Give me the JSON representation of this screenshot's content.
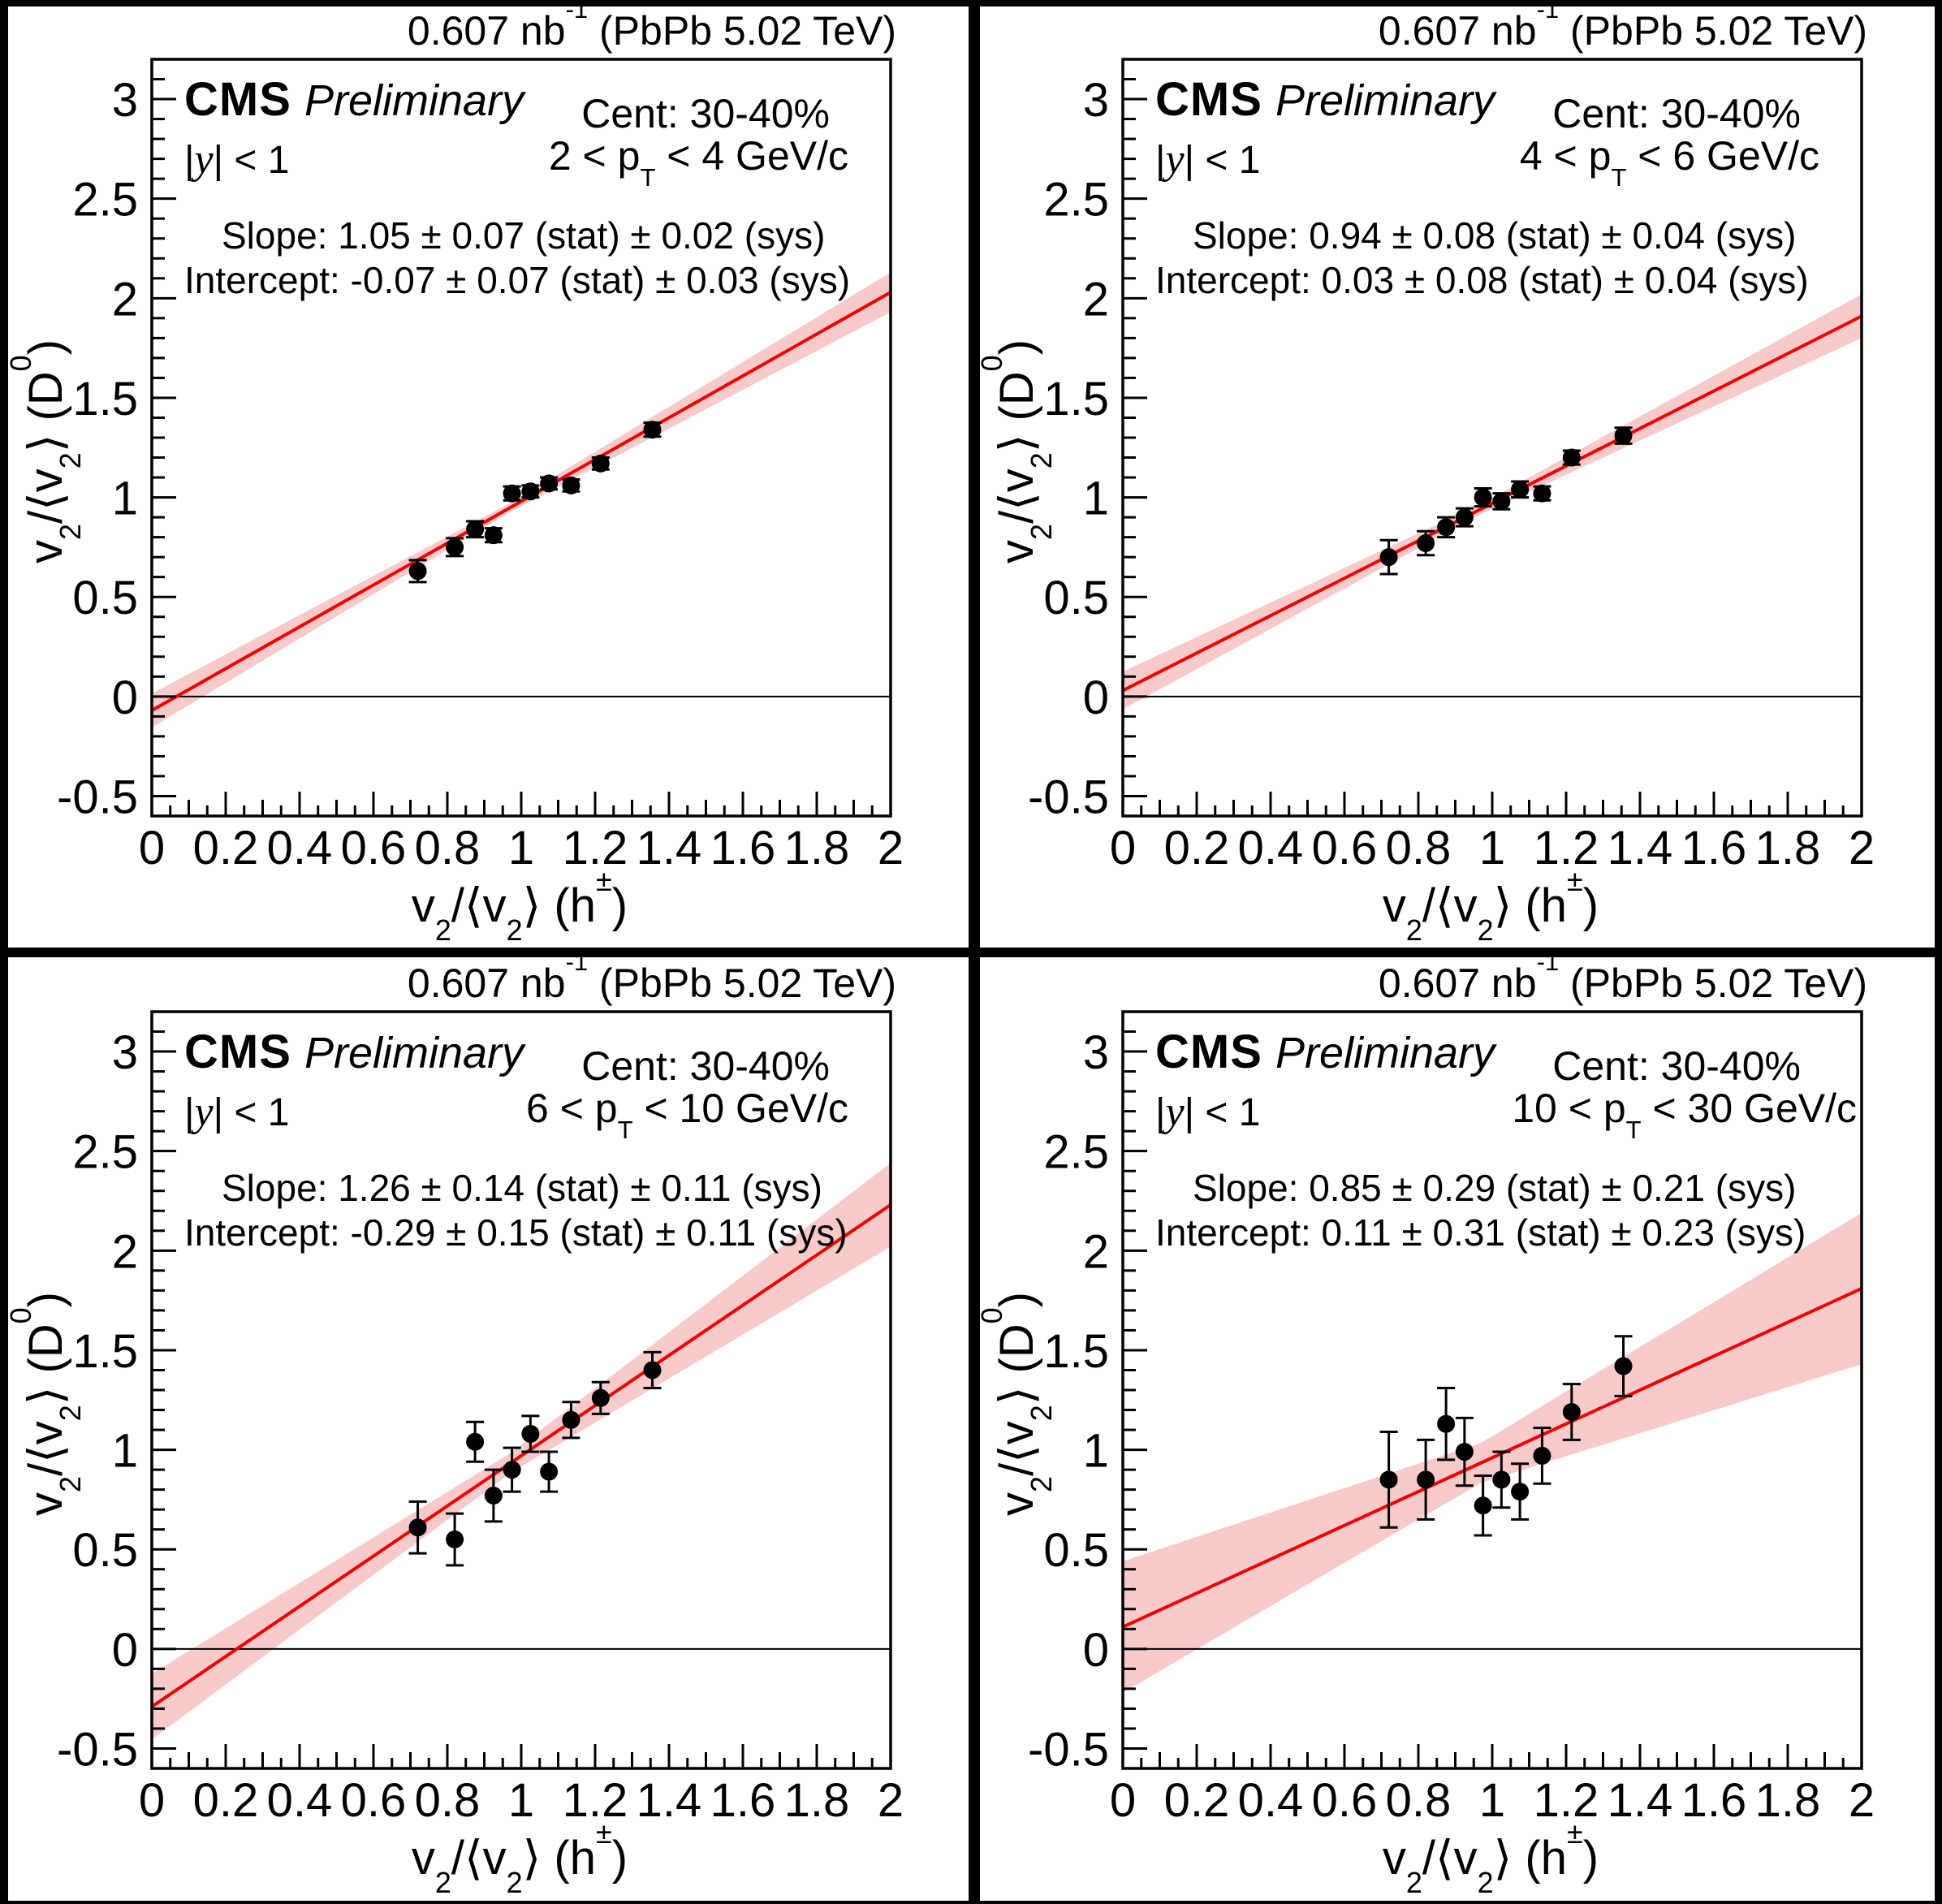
{
  "axes": {
    "xlabel_html": "v<sub>2</sub>/⟨v<sub>2</sub>⟩ (h<sup>±</sup>)",
    "ylabel_html": "v<sub>2</sub>/⟨v<sub>2</sub>⟩ (D<sup>0</sup>)",
    "xlabel": "v₂/⟨v₂⟩ (h±)",
    "ylabel": "v₂/⟨v₂⟩ (D⁰)",
    "xlim": [
      0,
      2
    ],
    "ylim": [
      -0.6,
      3.2
    ],
    "x_tick_labels": [
      "0",
      "0.2",
      "0.4",
      "0.6",
      "0.8",
      "1",
      "1.2",
      "1.4",
      "1.6",
      "1.8",
      "2"
    ],
    "y_tick_labels": [
      "-0.5",
      "0",
      "0.5",
      "1",
      "1.5",
      "2",
      "2.5",
      "3"
    ],
    "grid": false
  },
  "colors": {
    "fit_line": "#ee0000",
    "fit_band": "#f9caca",
    "marker": "#000000",
    "frame": "#000000"
  },
  "chart_data": [
    {
      "type": "scatter",
      "lumi_html": "0.607 nb<sup>-1</sup> (PbPb 5.02 TeV)",
      "experiment": "CMS",
      "label": "Preliminary",
      "centrality": "Cent: 30-40%",
      "rapidity_html": "|<i>y</i>| &lt; 1",
      "pt_range_html": "2 &lt; p<sub>T</sub> &lt; 4 GeV/c",
      "slope_text": "Slope: 1.05 ± 0.07 (stat) ± 0.02 (sys)",
      "intercept_text": "Intercept: -0.07 ± 0.07 (stat) ± 0.03 (sys)",
      "fit": {
        "slope": 1.05,
        "intercept": -0.07
      },
      "band": {
        "w0": 0.085,
        "wc": 0.022,
        "w2": 0.1,
        "pivot": 0.97
      },
      "x": [
        0.72,
        0.82,
        0.875,
        0.925,
        0.975,
        1.025,
        1.075,
        1.135,
        1.215,
        1.355
      ],
      "y": [
        0.63,
        0.75,
        0.84,
        0.81,
        1.02,
        1.03,
        1.07,
        1.06,
        1.17,
        1.34
      ],
      "yerr": [
        0.055,
        0.045,
        0.04,
        0.035,
        0.035,
        0.03,
        0.03,
        0.03,
        0.03,
        0.035
      ]
    },
    {
      "type": "scatter",
      "lumi_html": "0.607 nb<sup>-1</sup> (PbPb 5.02 TeV)",
      "experiment": "CMS",
      "label": "Preliminary",
      "centrality": "Cent: 30-40%",
      "rapidity_html": "|<i>y</i>| &lt; 1",
      "pt_range_html": "4 &lt; p<sub>T</sub> &lt; 6 GeV/c",
      "slope_text": "Slope: 0.94 ± 0.08 (stat) ± 0.04 (sys)",
      "intercept_text": "Intercept: 0.03 ± 0.08 (stat) ± 0.04 (sys)",
      "fit": {
        "slope": 0.94,
        "intercept": 0.03
      },
      "band": {
        "w0": 0.095,
        "wc": 0.025,
        "w2": 0.11,
        "pivot": 0.97
      },
      "x": [
        0.72,
        0.82,
        0.875,
        0.925,
        0.975,
        1.025,
        1.075,
        1.135,
        1.215,
        1.355
      ],
      "y": [
        0.7,
        0.77,
        0.85,
        0.9,
        1.0,
        0.98,
        1.04,
        1.02,
        1.2,
        1.31
      ],
      "yerr": [
        0.085,
        0.06,
        0.05,
        0.045,
        0.045,
        0.04,
        0.04,
        0.035,
        0.035,
        0.04
      ]
    },
    {
      "type": "scatter",
      "lumi_html": "0.607 nb<sup>-1</sup> (PbPb 5.02 TeV)",
      "experiment": "CMS",
      "label": "Preliminary",
      "centrality": "Cent: 30-40%",
      "rapidity_html": "|<i>y</i>| &lt; 1",
      "pt_range_html": "6 &lt; p<sub>T</sub> &lt; 10 GeV/c",
      "slope_text": "Slope: 1.26 ± 0.14 (stat) ± 0.11 (sys)",
      "intercept_text": "Intercept: -0.29 ± 0.15 (stat) ± 0.11 (sys)",
      "fit": {
        "slope": 1.26,
        "intercept": -0.29
      },
      "band": {
        "w0": 0.165,
        "wc": 0.05,
        "w2": 0.21,
        "pivot": 0.97
      },
      "x": [
        0.72,
        0.82,
        0.875,
        0.925,
        0.975,
        1.025,
        1.075,
        1.135,
        1.215,
        1.355
      ],
      "y": [
        0.61,
        0.55,
        1.04,
        0.77,
        0.9,
        1.08,
        0.89,
        1.15,
        1.26,
        1.4
      ],
      "yerr": [
        0.13,
        0.13,
        0.1,
        0.13,
        0.11,
        0.09,
        0.1,
        0.09,
        0.08,
        0.09
      ]
    },
    {
      "type": "scatter",
      "lumi_html": "0.607 nb<sup>-1</sup> (PbPb 5.02 TeV)",
      "experiment": "CMS",
      "label": "Preliminary",
      "centrality": "Cent: 30-40%",
      "rapidity_html": "|<i>y</i>| &lt; 1",
      "pt_range_html": "10 &lt; p<sub>T</sub> &lt; 30 GeV/c",
      "slope_text": "Slope: 0.85 ± 0.29 (stat) ± 0.21 (sys)",
      "intercept_text": "Intercept: 0.11 ± 0.31 (stat) ± 0.23 (sys)",
      "fit": {
        "slope": 0.85,
        "intercept": 0.11
      },
      "band": {
        "w0": 0.33,
        "wc": 0.1,
        "w2": 0.38,
        "pivot": 0.97
      },
      "x": [
        0.72,
        0.82,
        0.875,
        0.925,
        0.975,
        1.025,
        1.075,
        1.135,
        1.215,
        1.355
      ],
      "y": [
        0.85,
        0.85,
        1.13,
        0.99,
        0.72,
        0.85,
        0.79,
        0.97,
        1.19,
        1.42
      ],
      "yerr": [
        0.24,
        0.2,
        0.18,
        0.17,
        0.15,
        0.14,
        0.14,
        0.14,
        0.14,
        0.15
      ]
    }
  ]
}
